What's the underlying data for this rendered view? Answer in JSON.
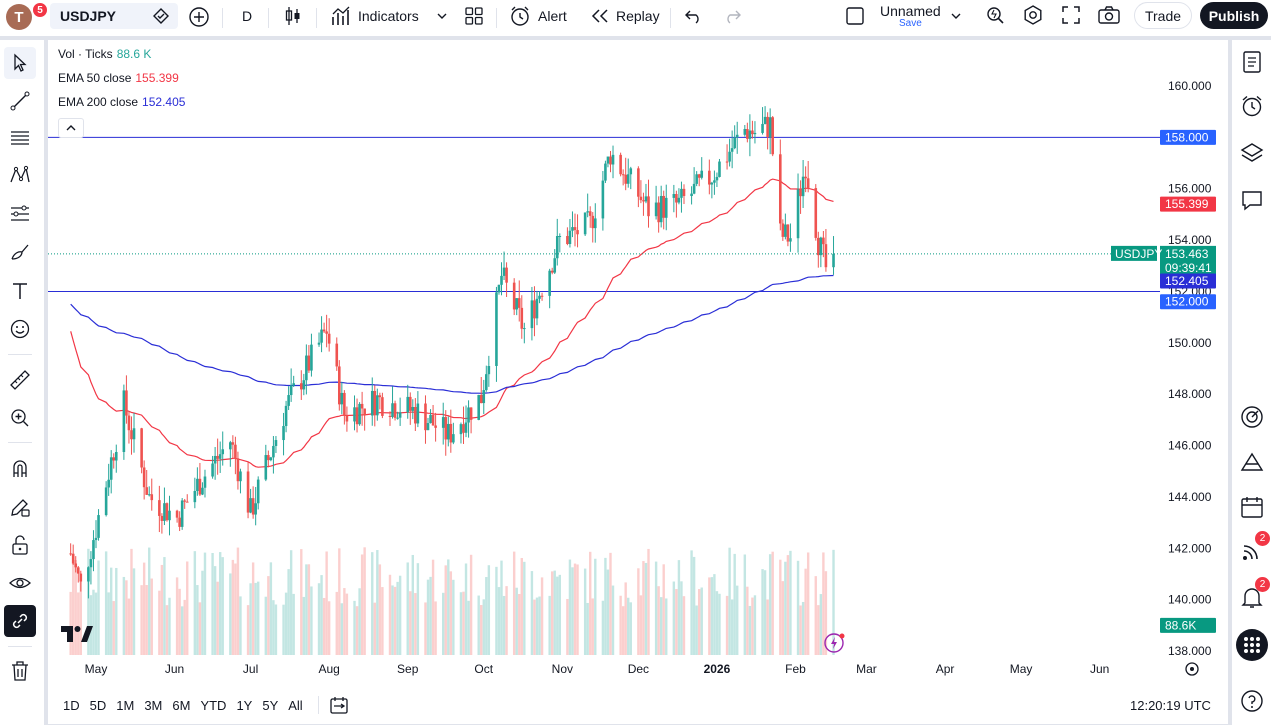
{
  "topbar": {
    "avatar_letter": "T",
    "avatar_badge": "5",
    "symbol": "USDJPY",
    "interval": "D",
    "indicators_label": "Indicators",
    "alert_label": "Alert",
    "replay_label": "Replay",
    "layout_name": "Unnamed",
    "layout_save": "Save",
    "trade_label": "Trade",
    "publish_label": "Publish"
  },
  "legend": {
    "vol_label": "Vol · Ticks",
    "vol_value": "88.6 K",
    "ema50_label": "EMA 50 close",
    "ema50_value": "155.399",
    "ema200_label": "EMA 200 close",
    "ema200_value": "152.405"
  },
  "price_axis": {
    "ticks": [
      "160.000",
      "158.000",
      "156.000",
      "154.000",
      "152.000",
      "150.000",
      "148.000",
      "146.000",
      "144.000",
      "142.000",
      "140.000",
      "138.000"
    ],
    "labels": {
      "line_158": "158.000",
      "ema50": "155.399",
      "symbol_tag": "USDJPY",
      "last_price": "153.463",
      "countdown": "09:39:41",
      "ema200": "152.405",
      "line_152": "152.000",
      "volume": "88.6K"
    }
  },
  "time_axis": {
    "months": [
      "May",
      "Jun",
      "Jul",
      "Aug",
      "Sep",
      "Oct",
      "Nov",
      "Dec",
      "2026",
      "Feb",
      "Mar",
      "Apr",
      "May",
      "Jun"
    ]
  },
  "bottombar": {
    "ranges": [
      "1D",
      "5D",
      "1M",
      "3M",
      "6M",
      "YTD",
      "1Y",
      "5Y",
      "All"
    ],
    "clock": "12:20:19 UTC"
  },
  "rightbar": {
    "badge_1": "2",
    "badge_2": "2"
  },
  "colors": {
    "up": "#26a69a",
    "down": "#ef5350",
    "ema50": "#f23645",
    "ema200": "#2a2ed6",
    "hline": "#2962ff",
    "last": "#089981"
  },
  "chart_data": {
    "type": "candlestick",
    "symbol": "USDJPY",
    "interval": "D",
    "ylim": [
      138,
      160.5
    ],
    "horizontal_lines": [
      158.0,
      152.0
    ],
    "last_price": 153.463,
    "ema50_last": 155.399,
    "ema200_last": 152.405,
    "close_path": [
      {
        "date": "2025-04-21",
        "close": 141.8
      },
      {
        "date": "2025-04-25",
        "close": 140.5
      },
      {
        "date": "2025-05-01",
        "close": 142.8
      },
      {
        "date": "2025-05-12",
        "close": 147.6
      },
      {
        "date": "2025-05-22",
        "close": 144.0
      },
      {
        "date": "2025-06-02",
        "close": 143.2
      },
      {
        "date": "2025-06-11",
        "close": 144.6
      },
      {
        "date": "2025-06-23",
        "close": 146.2
      },
      {
        "date": "2025-07-01",
        "close": 143.4
      },
      {
        "date": "2025-07-15",
        "close": 147.5
      },
      {
        "date": "2025-07-31",
        "close": 150.5
      },
      {
        "date": "2025-08-07",
        "close": 147.2
      },
      {
        "date": "2025-08-20",
        "close": 147.8
      },
      {
        "date": "2025-09-05",
        "close": 147.3
      },
      {
        "date": "2025-09-17",
        "close": 146.4
      },
      {
        "date": "2025-09-30",
        "close": 147.9
      },
      {
        "date": "2025-10-08",
        "close": 152.6
      },
      {
        "date": "2025-10-17",
        "close": 150.5
      },
      {
        "date": "2025-10-31",
        "close": 154.0
      },
      {
        "date": "2025-11-12",
        "close": 154.6
      },
      {
        "date": "2025-11-20",
        "close": 157.4
      },
      {
        "date": "2025-12-05",
        "close": 155.2
      },
      {
        "date": "2025-12-17",
        "close": 155.4
      },
      {
        "date": "2025-12-30",
        "close": 156.5
      },
      {
        "date": "2026-01-12",
        "close": 158.3
      },
      {
        "date": "2026-01-16",
        "close": 158.2
      },
      {
        "date": "2026-01-22",
        "close": 158.5
      },
      {
        "date": "2026-01-26",
        "close": 154.2
      },
      {
        "date": "2026-01-30",
        "close": 154.1
      },
      {
        "date": "2026-02-05",
        "close": 157.0
      },
      {
        "date": "2026-02-10",
        "close": 154.0
      },
      {
        "date": "2026-02-13",
        "close": 152.9
      },
      {
        "date": "2026-02-16",
        "close": 153.463
      }
    ]
  }
}
